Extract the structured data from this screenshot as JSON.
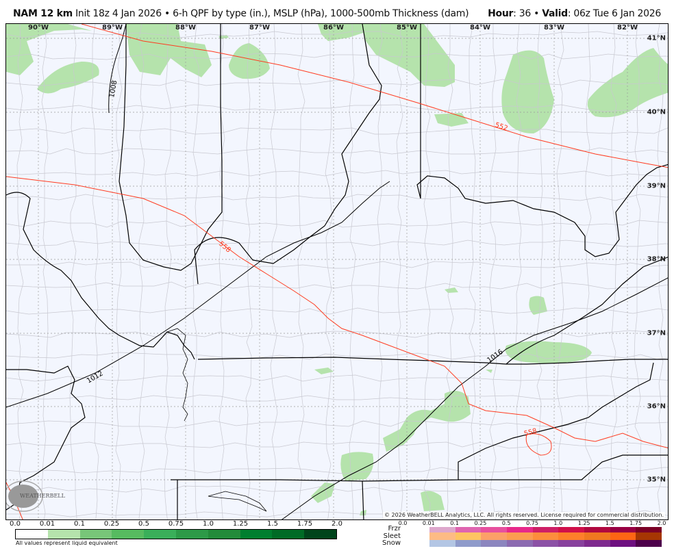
{
  "header": {
    "model": "NAM 12 km",
    "description": "Init 18z 4 Jan 2026 • 6-h QPF by type (in.), MSLP (hPa), 1000-500mb Thickness (dam)",
    "hour_label": "Hour",
    "hour_value": ": 36 • ",
    "valid_label": "Valid",
    "valid_value": ": 06z Tue 6 Jan 2026"
  },
  "map": {
    "longitude_labels": [
      "90°W",
      "89°W",
      "88°W",
      "87°W",
      "86°W",
      "85°W",
      "84°W",
      "83°W",
      "82°W"
    ],
    "latitude_labels": [
      "41°N",
      "40°N",
      "39°N",
      "38°N",
      "37°N",
      "36°N",
      "35°N"
    ],
    "contour_labels": {
      "mslp": [
        "1008",
        "1012",
        "1016"
      ],
      "thickness": [
        "552",
        "558",
        "558"
      ]
    },
    "colors": {
      "background": "#f3f6fe",
      "county_lines": "#c8c8d0",
      "state_lines": "#000000",
      "mslp": "#000000",
      "thickness": "#ff3b1f",
      "rain_light": "#b5e3ac"
    },
    "logo_text": "WeatherBELL Analytics LLC",
    "copyright": "© 2026 WeatherBELL Analytics, LLC. All rights reserved. License required for commercial distribution."
  },
  "legend": {
    "rain": {
      "ticks": [
        "0.0",
        "0.01",
        "0.1",
        "0.25",
        "0.5",
        "0.75",
        "1.0",
        "1.25",
        "1.5",
        "1.75",
        "2.0"
      ],
      "colors": [
        "#ffffff",
        "#b5e3ac",
        "#78c679",
        "#57bb60",
        "#3aaf5a",
        "#2d9a48",
        "#238b3a",
        "#007f2f",
        "#006b26",
        "#00441b"
      ],
      "note": "All values represent liquid equivalent"
    },
    "types": {
      "ticks": [
        "0.0",
        "0.01",
        "0.1",
        "0.25",
        "0.5",
        "0.75",
        "1.0",
        "1.25",
        "1.5",
        "1.75",
        "2.0"
      ],
      "rows": [
        {
          "label": "Frzr",
          "colors": [
            "#dda7cc",
            "#df65b0",
            "#e7509e",
            "#e7298a",
            "#ce1f66",
            "#d0104a",
            "#b0093f",
            "#980043",
            "#7a0026"
          ]
        },
        {
          "label": "Sleet",
          "colors": [
            "#fdbb84",
            "#fec462",
            "#fca068",
            "#fc9c50",
            "#fd8d3c",
            "#fe7f2a",
            "#f07820",
            "#fd6514",
            "#a63603"
          ]
        },
        {
          "label": "Snow",
          "colors": [
            "#b3c6e4",
            "#8f9bcb",
            "#8c86bf",
            "#8c6bb1",
            "#8c52a6",
            "#88419d",
            "#7e2a8e",
            "#6e1080",
            "#4d004b"
          ]
        }
      ]
    }
  }
}
